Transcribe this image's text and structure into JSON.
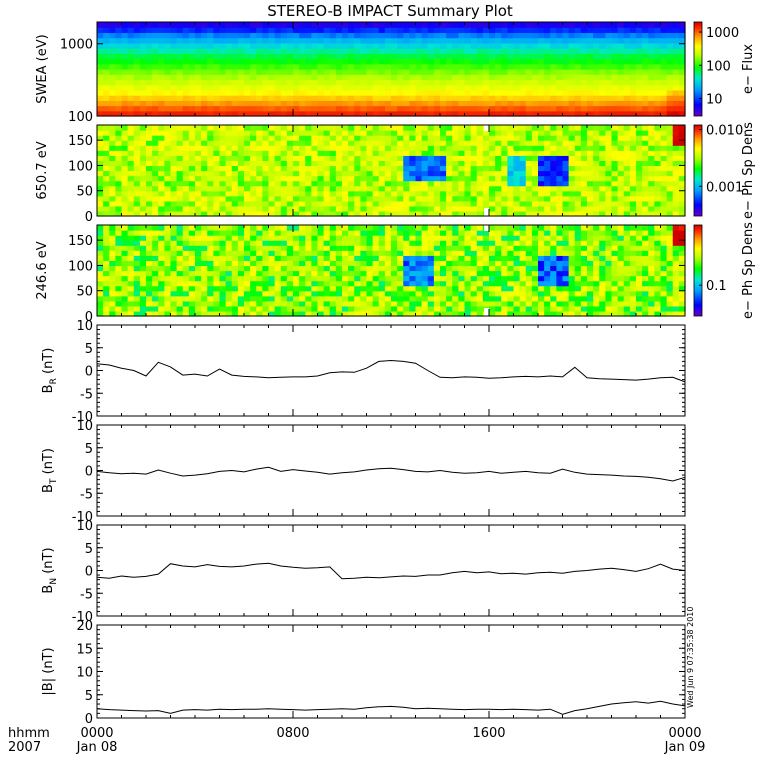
{
  "page": {
    "title": "STEREO-B IMPACT Summary Plot",
    "stamp": "Wed Jun  9 07:35:38 2010"
  },
  "time_axis": {
    "label_row1": "hhmm",
    "label_row2": "2007",
    "ticks": [
      {
        "t": 0,
        "top": "0000",
        "bottom": "Jan 08"
      },
      {
        "t": 8,
        "top": "0800",
        "bottom": ""
      },
      {
        "t": 16,
        "top": "1600",
        "bottom": ""
      },
      {
        "t": 24,
        "top": "0000",
        "bottom": "Jan 09"
      }
    ],
    "range_hours": [
      0,
      24
    ]
  },
  "colors": {
    "line": "#000000",
    "spectrum": [
      "#6a00c8",
      "#0000ff",
      "#00a0ff",
      "#00e8d0",
      "#00ff00",
      "#b4ff00",
      "#ffff00",
      "#ffa000",
      "#ff3000",
      "#d00000"
    ]
  },
  "chart_data": [
    {
      "type": "heatmap",
      "ylabel": "SWEA (eV)",
      "ylim": [
        100,
        2000
      ],
      "yscale": "log",
      "yticks": [
        "100",
        "1000"
      ],
      "colorbar": {
        "label": "e− Flux",
        "ticks": [
          "10",
          "100",
          "1000"
        ],
        "scale": "log",
        "range": [
          3,
          2000
        ]
      },
      "profile": [
        {
          "energy_eV": 100,
          "flux": 1500
        },
        {
          "energy_eV": 130,
          "flux": 700
        },
        {
          "energy_eV": 200,
          "flux": 250
        },
        {
          "energy_eV": 400,
          "flux": 90
        },
        {
          "energy_eV": 700,
          "flux": 40
        },
        {
          "energy_eV": 1000,
          "flux": 20
        },
        {
          "energy_eV": 1500,
          "flux": 8
        },
        {
          "energy_eV": 2000,
          "flux": 4
        }
      ]
    },
    {
      "type": "heatmap",
      "ylabel": "650.7 eV",
      "ylim": [
        0,
        180
      ],
      "yticks": [
        "0",
        "50",
        "100",
        "150"
      ],
      "colorbar": {
        "label": "e− Ph Sp Dens",
        "ticks": [
          "0.001",
          "0.010"
        ],
        "scale": "log",
        "range": [
          0.0003,
          0.012
        ]
      },
      "background": 0.0025,
      "features": [
        {
          "t_start": 12.4,
          "t_end": 14.2,
          "angle_center": 95,
          "value": 0.0006
        },
        {
          "t_start": 16.7,
          "t_end": 17.4,
          "angle_center": 90,
          "value": 0.0009
        },
        {
          "t_start": 17.9,
          "t_end": 19.2,
          "angle_center": 90,
          "value": 0.0005
        },
        {
          "t_start": 23.4,
          "t_end": 24.0,
          "angle_center": 165,
          "value": 0.012
        }
      ],
      "gap_hours": [
        15.8,
        16.0
      ]
    },
    {
      "type": "heatmap",
      "ylabel": "246.6 eV",
      "ylim": [
        0,
        180
      ],
      "yticks": [
        "0",
        "50",
        "100",
        "150"
      ],
      "colorbar": {
        "label": "e− Ph Sp Dens",
        "ticks": [
          "0.1"
        ],
        "scale": "log",
        "range": [
          0.04,
          0.6
        ]
      },
      "background": 0.17,
      "features": [
        {
          "t_start": 12.6,
          "t_end": 13.8,
          "angle_center": 90,
          "value": 0.07
        },
        {
          "t_start": 17.9,
          "t_end": 19.3,
          "angle_center": 90,
          "value": 0.065
        },
        {
          "t_start": 23.4,
          "t_end": 24.0,
          "angle_center": 165,
          "value": 0.6
        }
      ],
      "gap_hours": [
        15.8,
        16.0
      ]
    },
    {
      "type": "line",
      "ylabel_main": "B",
      "ylabel_sub": "R",
      "ylabel_unit": " (nT)",
      "ylim": [
        -10,
        10
      ],
      "yticks": [
        "-10",
        "-5",
        "0",
        "5",
        "10"
      ],
      "x": [
        0,
        0.5,
        1,
        1.5,
        2,
        2.5,
        3,
        3.5,
        4,
        4.5,
        5,
        5.5,
        6,
        6.5,
        7,
        7.5,
        8,
        8.5,
        9,
        9.5,
        10,
        10.5,
        11,
        11.5,
        12,
        12.5,
        13,
        13.5,
        14,
        14.5,
        15,
        15.5,
        16,
        16.5,
        17,
        17.5,
        18,
        18.5,
        19,
        19.5,
        20,
        20.5,
        21,
        21.5,
        22,
        22.5,
        23,
        23.5,
        24
      ],
      "y": [
        1.5,
        1.2,
        0.5,
        0,
        -1.2,
        1.8,
        0.8,
        -1.0,
        -0.8,
        -1.2,
        0.3,
        -1.0,
        -1.3,
        -1.4,
        -1.6,
        -1.5,
        -1.4,
        -1.4,
        -1.2,
        -0.5,
        -0.3,
        -0.4,
        0.5,
        2.0,
        2.2,
        2.0,
        1.6,
        0,
        -1.5,
        -1.6,
        -1.4,
        -1.5,
        -1.7,
        -1.6,
        -1.4,
        -1.3,
        -1.4,
        -1.2,
        -1.4,
        0.7,
        -1.6,
        -1.8,
        -1.9,
        -2.0,
        -2.1,
        -1.9,
        -1.6,
        -1.5,
        -2.5
      ]
    },
    {
      "type": "line",
      "ylabel_main": "B",
      "ylabel_sub": "T",
      "ylabel_unit": " (nT)",
      "ylim": [
        -10,
        10
      ],
      "yticks": [
        "-10",
        "-5",
        "0",
        "5",
        "10"
      ],
      "x": [
        0,
        0.5,
        1,
        1.5,
        2,
        2.5,
        3,
        3.5,
        4,
        4.5,
        5,
        5.5,
        6,
        6.5,
        7,
        7.5,
        8,
        8.5,
        9,
        9.5,
        10,
        10.5,
        11,
        11.5,
        12,
        12.5,
        13,
        13.5,
        14,
        14.5,
        15,
        15.5,
        16,
        16.5,
        17,
        17.5,
        18,
        18.5,
        19,
        19.5,
        20,
        20.5,
        21,
        21.5,
        22,
        22.5,
        23,
        23.5,
        24
      ],
      "y": [
        -0.2,
        -0.5,
        -0.7,
        -0.6,
        -0.8,
        0.1,
        -0.6,
        -1.2,
        -1.0,
        -0.7,
        -0.2,
        0,
        -0.3,
        0.3,
        0.7,
        -0.2,
        0.2,
        -0.1,
        -0.4,
        -0.8,
        -0.5,
        -0.3,
        0.1,
        0.4,
        0.5,
        0.2,
        -0.2,
        -0.3,
        0,
        -0.4,
        -0.6,
        -0.5,
        -0.2,
        -0.6,
        -0.4,
        -0.2,
        -0.5,
        -0.6,
        0.3,
        -0.4,
        -0.8,
        -0.9,
        -1.0,
        -1.2,
        -1.3,
        -1.5,
        -1.8,
        -2.3,
        -1.5
      ]
    },
    {
      "type": "line",
      "ylabel_main": "B",
      "ylabel_sub": "N",
      "ylabel_unit": " (nT)",
      "ylim": [
        -10,
        10
      ],
      "yticks": [
        "-10",
        "-5",
        "0",
        "5",
        "10"
      ],
      "x": [
        0,
        0.5,
        1,
        1.5,
        2,
        2.5,
        3,
        3.5,
        4,
        4.5,
        5,
        5.5,
        6,
        6.5,
        7,
        7.5,
        8,
        8.5,
        9,
        9.5,
        10,
        10.5,
        11,
        11.5,
        12,
        12.5,
        13,
        13.5,
        14,
        14.5,
        15,
        15.5,
        16,
        16.5,
        17,
        17.5,
        18,
        18.5,
        19,
        19.5,
        20,
        20.5,
        21,
        21.5,
        22,
        22.5,
        23,
        23.5,
        24
      ],
      "y": [
        -1.5,
        -1.7,
        -1.2,
        -1.5,
        -1.3,
        -0.8,
        1.5,
        1.0,
        0.8,
        1.3,
        0.9,
        0.8,
        1.0,
        1.4,
        1.6,
        1.0,
        0.7,
        0.5,
        0.6,
        0.8,
        -1.8,
        -1.7,
        -1.5,
        -1.6,
        -1.4,
        -1.2,
        -1.3,
        -1.0,
        -1.0,
        -0.5,
        -0.2,
        -0.5,
        -0.3,
        -0.7,
        -0.6,
        -0.8,
        -0.5,
        -0.4,
        -0.6,
        -0.2,
        0,
        0.3,
        0.5,
        0.2,
        -0.2,
        0.4,
        1.4,
        0.3,
        0
      ]
    },
    {
      "type": "line",
      "ylabel_main": "|B|",
      "ylabel_sub": "",
      "ylabel_unit": " (nT)",
      "ylim": [
        0,
        20
      ],
      "yticks": [
        "0",
        "5",
        "10",
        "15",
        "20"
      ],
      "x": [
        0,
        0.5,
        1,
        1.5,
        2,
        2.5,
        3,
        3.5,
        4,
        4.5,
        5,
        5.5,
        6,
        6.5,
        7,
        7.5,
        8,
        8.5,
        9,
        9.5,
        10,
        10.5,
        11,
        11.5,
        12,
        12.5,
        13,
        13.5,
        14,
        14.5,
        15,
        15.5,
        16,
        16.5,
        17,
        17.5,
        18,
        18.5,
        19,
        19.5,
        20,
        20.5,
        21,
        21.5,
        22,
        22.5,
        23,
        23.5,
        24
      ],
      "y": [
        2.0,
        1.8,
        1.7,
        1.6,
        1.5,
        1.6,
        1.0,
        1.7,
        1.8,
        1.7,
        1.9,
        1.8,
        1.9,
        1.9,
        2.0,
        1.9,
        1.8,
        1.7,
        1.8,
        1.9,
        2.0,
        1.9,
        2.2,
        2.4,
        2.5,
        2.3,
        2.0,
        2.1,
        2.0,
        1.9,
        1.8,
        1.9,
        1.9,
        1.8,
        1.9,
        1.8,
        1.7,
        1.9,
        0.8,
        1.6,
        2.0,
        2.5,
        3.0,
        3.3,
        3.5,
        3.2,
        3.6,
        3.0,
        2.6
      ]
    }
  ]
}
